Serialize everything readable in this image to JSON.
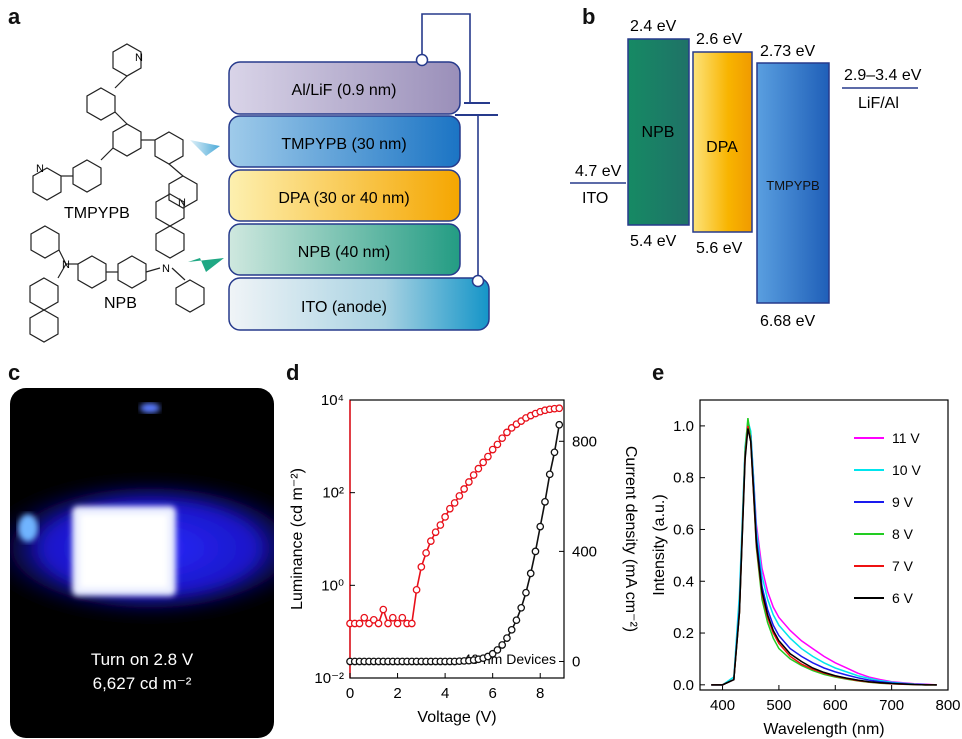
{
  "panels": {
    "a": "a",
    "b": "b",
    "c": "c",
    "d": "d",
    "e": "e"
  },
  "device_stack": {
    "layers": [
      "Al/LiF (0.9 nm)",
      "TMPYPB (30 nm)",
      "DPA (30 or 40 nm)",
      "NPB (40 nm)",
      "ITO (anode)"
    ],
    "molecule_labels": [
      "TMPYPB",
      "NPB"
    ],
    "atom_label": "N"
  },
  "energy_levels": {
    "ito": {
      "name": "ITO",
      "level": "4.7 eV"
    },
    "npb": {
      "name": "NPB",
      "top": "2.4 eV",
      "bottom": "5.4 eV"
    },
    "dpa": {
      "name": "DPA",
      "top": "2.6 eV",
      "bottom": "5.6 eV"
    },
    "tmpypb": {
      "name": "TMPYPB",
      "top": "2.73 eV",
      "bottom": "6.68 eV"
    },
    "cathode": {
      "name": "LiF/Al",
      "level": "2.9–3.4 eV"
    }
  },
  "photo": {
    "line1": "Turn on 2.8 V",
    "line2": "6,627 cd m⁻²"
  },
  "chart_data": [
    {
      "panel": "d",
      "type": "scatter",
      "annotation": "40 nm Devices",
      "xlabel": "Voltage (V)",
      "ylabel_left": "Luminance (cd m⁻²)",
      "ylabel_right": "Current density (mA cm⁻²)",
      "xlim": [
        0,
        9
      ],
      "xticks": [
        0,
        2,
        4,
        6,
        8
      ],
      "ylim_left_log10": [
        -2,
        4
      ],
      "yticks_left": [
        "10⁻²",
        "10⁰",
        "10²",
        "10⁴"
      ],
      "ylim_right": [
        -60,
        950
      ],
      "yticks_right": [
        0,
        400,
        800
      ],
      "series": [
        {
          "axis": "left",
          "color": "#e8101a",
          "x": [
            0,
            0.2,
            0.4,
            0.6,
            0.8,
            1.0,
            1.2,
            1.4,
            1.6,
            1.8,
            2.0,
            2.2,
            2.4,
            2.6,
            2.8,
            3.0,
            3.2,
            3.4,
            3.6,
            3.8,
            4.0,
            4.2,
            4.4,
            4.6,
            4.8,
            5.0,
            5.2,
            5.4,
            5.6,
            5.8,
            6.0,
            6.2,
            6.4,
            6.6,
            6.8,
            7.0,
            7.2,
            7.4,
            7.6,
            7.8,
            8.0,
            8.2,
            8.4,
            8.6,
            8.8
          ],
          "y": [
            0.15,
            0.15,
            0.15,
            0.2,
            0.15,
            0.18,
            0.15,
            0.3,
            0.15,
            0.2,
            0.15,
            0.2,
            0.15,
            0.15,
            0.8,
            2.5,
            5,
            9,
            14,
            20,
            30,
            45,
            60,
            85,
            120,
            170,
            240,
            330,
            450,
            600,
            850,
            1100,
            1500,
            2000,
            2500,
            3000,
            3500,
            4100,
            4600,
            5100,
            5600,
            6000,
            6300,
            6500,
            6627
          ]
        },
        {
          "axis": "right",
          "color": "#111111",
          "x": [
            0,
            0.2,
            0.4,
            0.6,
            0.8,
            1.0,
            1.2,
            1.4,
            1.6,
            1.8,
            2.0,
            2.2,
            2.4,
            2.6,
            2.8,
            3.0,
            3.2,
            3.4,
            3.6,
            3.8,
            4.0,
            4.2,
            4.4,
            4.6,
            4.8,
            5.0,
            5.2,
            5.4,
            5.6,
            5.8,
            6.0,
            6.2,
            6.4,
            6.6,
            6.8,
            7.0,
            7.2,
            7.4,
            7.6,
            7.8,
            8.0,
            8.2,
            8.4,
            8.6,
            8.8
          ],
          "y": [
            0,
            0,
            0,
            0,
            0,
            0,
            0,
            0,
            0,
            0,
            0,
            0,
            0,
            0,
            0,
            0,
            0,
            0,
            0,
            0,
            0,
            0,
            0,
            1,
            2,
            3,
            5,
            8,
            12,
            18,
            28,
            42,
            60,
            85,
            115,
            150,
            195,
            250,
            320,
            400,
            490,
            580,
            680,
            760,
            860
          ]
        }
      ]
    },
    {
      "panel": "e",
      "type": "line",
      "xlabel": "Wavelength (nm)",
      "ylabel": "Intensity (a.u.)",
      "xlim": [
        360,
        800
      ],
      "xticks": [
        400,
        500,
        600,
        700,
        800
      ],
      "ylim": [
        -0.02,
        1.1
      ],
      "yticks": [
        "0.0",
        "0.2",
        "0.4",
        "0.6",
        "0.8",
        "1.0"
      ],
      "x": [
        380,
        400,
        420,
        430,
        440,
        445,
        450,
        455,
        460,
        470,
        480,
        490,
        500,
        520,
        540,
        560,
        580,
        600,
        620,
        640,
        660,
        680,
        700,
        720,
        740,
        760,
        780
      ],
      "series": [
        {
          "name": "11 V",
          "color": "#ff00ff",
          "y": [
            0.0,
            0.0,
            0.02,
            0.3,
            0.9,
            1.0,
            0.97,
            0.8,
            0.62,
            0.45,
            0.36,
            0.3,
            0.26,
            0.21,
            0.17,
            0.14,
            0.11,
            0.085,
            0.065,
            0.045,
            0.03,
            0.02,
            0.012,
            0.008,
            0.004,
            0.002,
            0.0
          ]
        },
        {
          "name": "10 V",
          "color": "#00e5ee",
          "y": [
            0.0,
            0.0,
            0.03,
            0.35,
            0.92,
            1.02,
            0.98,
            0.8,
            0.6,
            0.42,
            0.33,
            0.27,
            0.23,
            0.18,
            0.14,
            0.11,
            0.085,
            0.065,
            0.05,
            0.035,
            0.025,
            0.016,
            0.01,
            0.006,
            0.003,
            0.001,
            0.0
          ]
        },
        {
          "name": "9 V",
          "color": "#1a1aee",
          "y": [
            0.0,
            0.0,
            0.02,
            0.3,
            0.9,
            1.0,
            0.96,
            0.77,
            0.57,
            0.38,
            0.29,
            0.23,
            0.19,
            0.14,
            0.11,
            0.085,
            0.065,
            0.05,
            0.038,
            0.027,
            0.018,
            0.012,
            0.007,
            0.004,
            0.002,
            0.001,
            0.0
          ]
        },
        {
          "name": "8 V",
          "color": "#22cc22",
          "y": [
            0.0,
            0.0,
            0.02,
            0.28,
            0.9,
            1.03,
            0.95,
            0.74,
            0.53,
            0.33,
            0.24,
            0.18,
            0.14,
            0.1,
            0.075,
            0.055,
            0.04,
            0.03,
            0.022,
            0.015,
            0.01,
            0.006,
            0.004,
            0.002,
            0.001,
            0.0,
            0.0
          ]
        },
        {
          "name": "7 V",
          "color": "#ee1111",
          "y": [
            0.0,
            0.0,
            0.02,
            0.28,
            0.88,
            1.0,
            0.94,
            0.74,
            0.54,
            0.35,
            0.26,
            0.2,
            0.16,
            0.11,
            0.08,
            0.06,
            0.045,
            0.033,
            0.024,
            0.016,
            0.011,
            0.007,
            0.004,
            0.002,
            0.001,
            0.0,
            0.0
          ]
        },
        {
          "name": "6 V",
          "color": "#000000",
          "y": [
            0.0,
            0.0,
            0.02,
            0.28,
            0.87,
            0.99,
            0.94,
            0.75,
            0.55,
            0.36,
            0.27,
            0.21,
            0.17,
            0.12,
            0.09,
            0.065,
            0.048,
            0.035,
            0.026,
            0.018,
            0.012,
            0.008,
            0.005,
            0.003,
            0.001,
            0.0,
            0.0
          ]
        }
      ]
    }
  ]
}
